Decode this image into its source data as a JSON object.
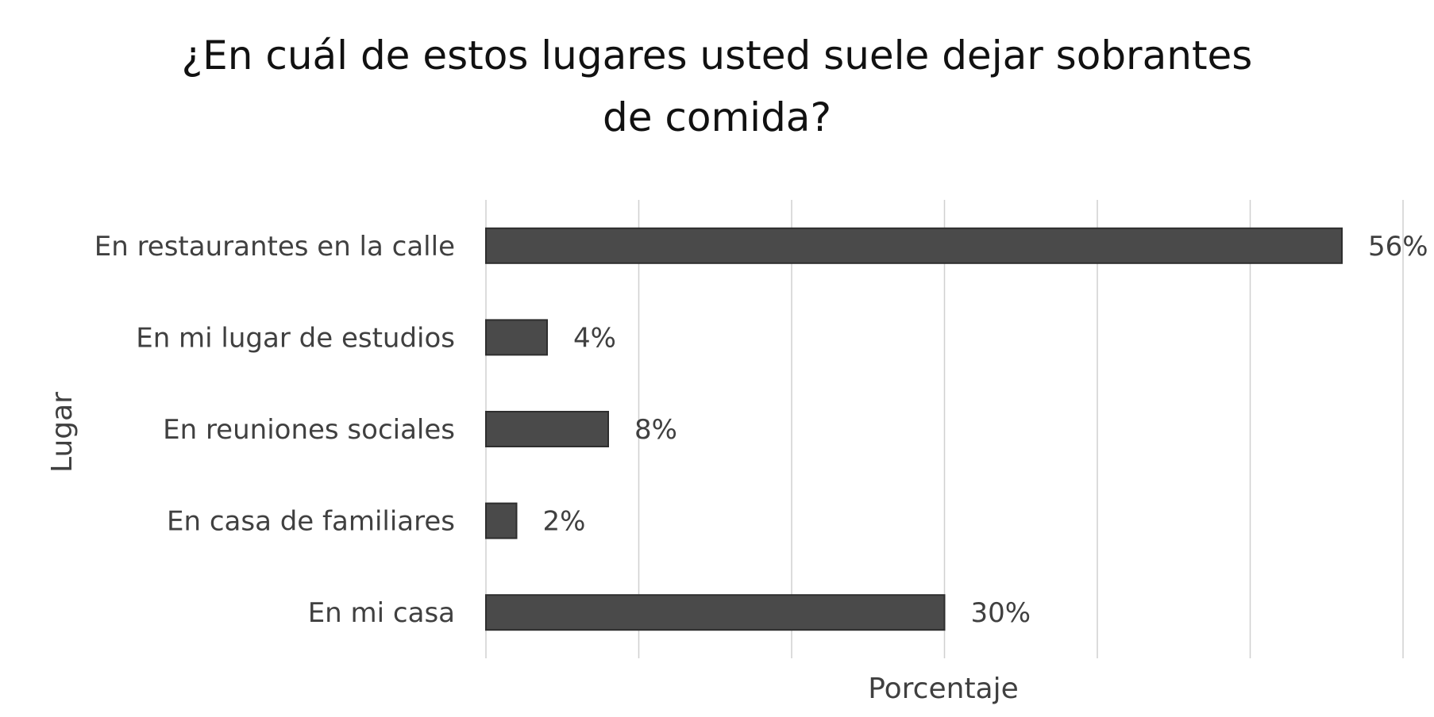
{
  "chart_data": {
    "type": "bar",
    "orientation": "horizontal",
    "title_lines": [
      "¿En cuál de estos lugares usted suele dejar sobrantes",
      "de comida?"
    ],
    "xlabel": "Porcentaje",
    "ylabel": "Lugar",
    "categories": [
      "En restaurantes en la calle",
      "En mi lugar de estudios",
      "En reuniones sociales",
      "En casa de familiares",
      "En mi casa"
    ],
    "values": [
      56,
      4,
      8,
      2,
      30
    ],
    "value_labels": [
      "56%",
      "4%",
      "8%",
      "2%",
      "30%"
    ],
    "xlim": [
      0,
      60
    ],
    "grid_step": 10,
    "grid": true,
    "legend": "none",
    "bar_color": "#4a4a4a"
  }
}
